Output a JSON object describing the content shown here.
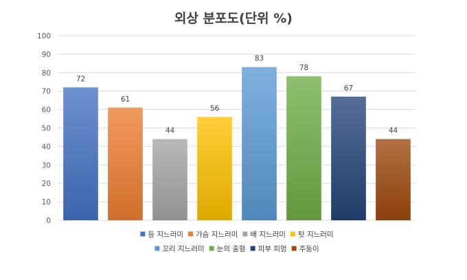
{
  "chart_data": {
    "type": "bar",
    "title": "외상 분포도(단위 %)",
    "xlabel": "",
    "ylabel": "",
    "ylim": [
      0,
      100
    ],
    "ytick_step": 10,
    "grid": true,
    "legend_position": "bottom",
    "categories": [
      "등 지느러미",
      "가슴 지느러미",
      "배 지느러미",
      "텃 지느러미",
      "꼬리 지느러미",
      "눈의 출혈",
      "피부 피멍",
      "주둥이"
    ],
    "values": [
      72,
      61,
      44,
      56,
      83,
      78,
      67,
      44
    ],
    "colors": [
      "#4472c4",
      "#ed7d31",
      "#a5a5a5",
      "#ffc000",
      "#5b9bd5",
      "#70ad47",
      "#264478",
      "#9e480e"
    ]
  }
}
